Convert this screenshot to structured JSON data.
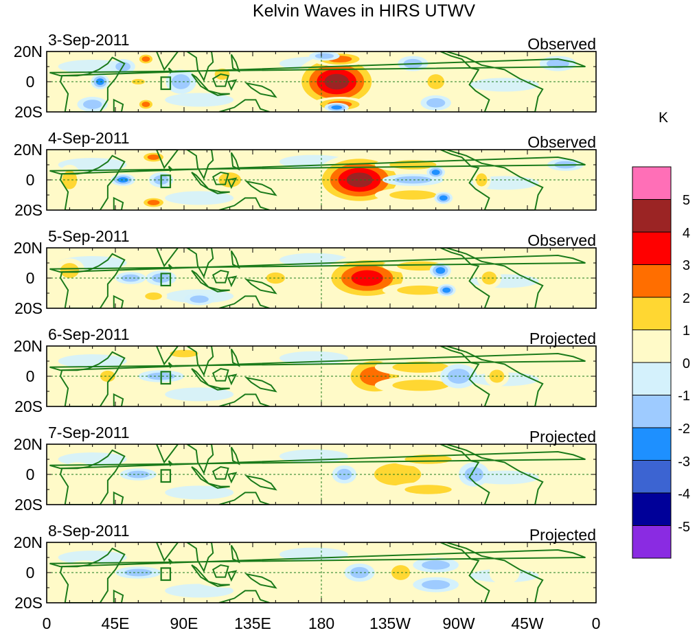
{
  "title": "Kelvin Waves in HIRS UTWV",
  "panels": [
    {
      "date": "3-Sep-2011",
      "status": "Observed",
      "anomalies": [
        {
          "lon": 190,
          "lat": 0,
          "value": 4.3,
          "rx": 28,
          "ry": 18
        },
        {
          "lon": 192,
          "lat": 15,
          "value": 2.2,
          "rx": 18,
          "ry": 5
        },
        {
          "lon": 192,
          "lat": -15,
          "value": 2.2,
          "rx": 18,
          "ry": 5
        },
        {
          "lon": 190,
          "lat": -17,
          "value": -2.2,
          "rx": 8,
          "ry": 3
        },
        {
          "lon": 182,
          "lat": 17,
          "value": -1.6,
          "rx": 10,
          "ry": 3
        },
        {
          "lon": 65,
          "lat": 15,
          "value": 2.2,
          "rx": 6,
          "ry": 4
        },
        {
          "lon": 65,
          "lat": -15,
          "value": 2.2,
          "rx": 6,
          "ry": 4
        },
        {
          "lon": 60,
          "lat": 0,
          "value": 2.0,
          "rx": 7,
          "ry": 3
        },
        {
          "lon": 115,
          "lat": 5,
          "value": 1.6,
          "rx": 8,
          "ry": 6
        },
        {
          "lon": 35,
          "lat": 0,
          "value": -2.2,
          "rx": 6,
          "ry": 5
        },
        {
          "lon": 50,
          "lat": 10,
          "value": -1.6,
          "rx": 8,
          "ry": 5
        },
        {
          "lon": 88,
          "lat": 0,
          "value": -1.6,
          "rx": 10,
          "ry": 8
        },
        {
          "lon": 255,
          "lat": 0,
          "value": 1.6,
          "rx": 9,
          "ry": 8
        },
        {
          "lon": 240,
          "lat": 12,
          "value": -1.6,
          "rx": 10,
          "ry": 5
        },
        {
          "lon": 255,
          "lat": -14,
          "value": -1.6,
          "rx": 10,
          "ry": 5
        },
        {
          "lon": 335,
          "lat": 12,
          "value": -1.5,
          "rx": 12,
          "ry": 5
        },
        {
          "lon": 30,
          "lat": -15,
          "value": -1.5,
          "rx": 10,
          "ry": 5
        }
      ]
    },
    {
      "date": "4-Sep-2011",
      "status": "Observed",
      "anomalies": [
        {
          "lon": 205,
          "lat": 0,
          "value": 4.2,
          "rx": 30,
          "ry": 17
        },
        {
          "lon": 240,
          "lat": 10,
          "value": 1.6,
          "rx": 25,
          "ry": 5
        },
        {
          "lon": 240,
          "lat": -10,
          "value": 1.6,
          "rx": 25,
          "ry": 5
        },
        {
          "lon": 240,
          "lat": 0,
          "value": -1.5,
          "rx": 20,
          "ry": 4
        },
        {
          "lon": 255,
          "lat": 5,
          "value": -2.2,
          "rx": 6,
          "ry": 4
        },
        {
          "lon": 260,
          "lat": -12,
          "value": -2.2,
          "rx": 6,
          "ry": 4
        },
        {
          "lon": 285,
          "lat": 0,
          "value": 1.6,
          "rx": 6,
          "ry": 7
        },
        {
          "lon": 70,
          "lat": 15,
          "value": 2.2,
          "rx": 9,
          "ry": 4
        },
        {
          "lon": 70,
          "lat": -15,
          "value": 2.2,
          "rx": 9,
          "ry": 4
        },
        {
          "lon": 50,
          "lat": 0,
          "value": -2.2,
          "rx": 8,
          "ry": 4
        },
        {
          "lon": 75,
          "lat": 0,
          "value": -1.6,
          "rx": 8,
          "ry": 5
        },
        {
          "lon": 120,
          "lat": 0,
          "value": 1.5,
          "rx": 12,
          "ry": 8
        },
        {
          "lon": 15,
          "lat": 0,
          "value": 1.2,
          "rx": 8,
          "ry": 10
        },
        {
          "lon": 340,
          "lat": 10,
          "value": -1.5,
          "rx": 12,
          "ry": 4
        }
      ]
    },
    {
      "date": "5-Sep-2011",
      "status": "Observed",
      "anomalies": [
        {
          "lon": 210,
          "lat": 0,
          "value": 3.3,
          "rx": 30,
          "ry": 15
        },
        {
          "lon": 245,
          "lat": 8,
          "value": 1.5,
          "rx": 25,
          "ry": 5
        },
        {
          "lon": 245,
          "lat": -8,
          "value": 1.5,
          "rx": 25,
          "ry": 5
        },
        {
          "lon": 258,
          "lat": 5,
          "value": -2.2,
          "rx": 7,
          "ry": 5
        },
        {
          "lon": 262,
          "lat": -8,
          "value": -2.2,
          "rx": 6,
          "ry": 4
        },
        {
          "lon": 290,
          "lat": 0,
          "value": 1.6,
          "rx": 8,
          "ry": 7
        },
        {
          "lon": 55,
          "lat": 0,
          "value": -2.0,
          "rx": 10,
          "ry": 4
        },
        {
          "lon": 75,
          "lat": 0,
          "value": -1.6,
          "rx": 10,
          "ry": 5
        },
        {
          "lon": 70,
          "lat": -12,
          "value": 1.5,
          "rx": 9,
          "ry": 4
        },
        {
          "lon": 150,
          "lat": 0,
          "value": 1.5,
          "rx": 10,
          "ry": 6
        },
        {
          "lon": 100,
          "lat": -14,
          "value": -1.5,
          "rx": 10,
          "ry": 4
        },
        {
          "lon": 15,
          "lat": 5,
          "value": 1.3,
          "rx": 10,
          "ry": 8
        }
      ]
    },
    {
      "date": "6-Sep-2011",
      "status": "Projected",
      "anomalies": [
        {
          "lon": 215,
          "lat": 0,
          "value": 2.2,
          "rx": 22,
          "ry": 14
        },
        {
          "lon": 245,
          "lat": 6,
          "value": 1.5,
          "rx": 30,
          "ry": 6
        },
        {
          "lon": 245,
          "lat": -6,
          "value": 1.5,
          "rx": 30,
          "ry": 6
        },
        {
          "lon": 270,
          "lat": 0,
          "value": -1.5,
          "rx": 12,
          "ry": 8
        },
        {
          "lon": 295,
          "lat": 0,
          "value": 1.2,
          "rx": 8,
          "ry": 7
        },
        {
          "lon": 40,
          "lat": 0,
          "value": 1.5,
          "rx": 8,
          "ry": 6
        },
        {
          "lon": 75,
          "lat": 0,
          "value": -1.5,
          "rx": 15,
          "ry": 4
        },
        {
          "lon": 90,
          "lat": 15,
          "value": 1.2,
          "rx": 15,
          "ry": 4
        },
        {
          "lon": 130,
          "lat": 0,
          "value": 1.0,
          "rx": 20,
          "ry": 8
        }
      ]
    },
    {
      "date": "7-Sep-2011",
      "status": "Projected",
      "anomalies": [
        {
          "lon": 230,
          "lat": 0,
          "value": 1.5,
          "rx": 25,
          "ry": 12
        },
        {
          "lon": 250,
          "lat": 10,
          "value": 1.2,
          "rx": 25,
          "ry": 5
        },
        {
          "lon": 250,
          "lat": -10,
          "value": 1.2,
          "rx": 25,
          "ry": 5
        },
        {
          "lon": 280,
          "lat": 0,
          "value": -1.5,
          "rx": 10,
          "ry": 8
        },
        {
          "lon": 195,
          "lat": 0,
          "value": -1.2,
          "rx": 8,
          "ry": 6
        },
        {
          "lon": 140,
          "lat": 0,
          "value": 1.0,
          "rx": 25,
          "ry": 10
        },
        {
          "lon": 60,
          "lat": 0,
          "value": -1.2,
          "rx": 12,
          "ry": 4
        },
        {
          "lon": 20,
          "lat": 0,
          "value": 1.0,
          "rx": 12,
          "ry": 8
        }
      ]
    },
    {
      "date": "8-Sep-2011",
      "status": "Projected",
      "anomalies": [
        {
          "lon": 232,
          "lat": 0,
          "value": 1.3,
          "rx": 10,
          "ry": 8
        },
        {
          "lon": 255,
          "lat": 5,
          "value": -1.2,
          "rx": 15,
          "ry": 5
        },
        {
          "lon": 255,
          "lat": -8,
          "value": -1.2,
          "rx": 15,
          "ry": 5
        },
        {
          "lon": 205,
          "lat": 0,
          "value": -1.1,
          "rx": 10,
          "ry": 6
        },
        {
          "lon": 120,
          "lat": 0,
          "value": 1.0,
          "rx": 30,
          "ry": 10
        },
        {
          "lon": 60,
          "lat": 0,
          "value": -1.1,
          "rx": 15,
          "ry": 4
        },
        {
          "lon": 25,
          "lat": 0,
          "value": 1.0,
          "rx": 15,
          "ry": 8
        },
        {
          "lon": 300,
          "lat": 0,
          "value": 1.0,
          "rx": 10,
          "ry": 8
        }
      ]
    }
  ],
  "lat_labels": [
    "20N",
    "0",
    "20S"
  ],
  "lon_labels": [
    "0",
    "45E",
    "90E",
    "135E",
    "180",
    "135W",
    "90W",
    "45W",
    "0"
  ],
  "lon_ticks": [
    0,
    45,
    90,
    135,
    180,
    225,
    270,
    315,
    360
  ],
  "lat_range": [
    -20,
    20
  ],
  "lon_range": [
    0,
    360
  ],
  "colorbar": {
    "unit": "K",
    "levels": [
      -5,
      -4,
      -3,
      -2,
      -1,
      0,
      1,
      2,
      3,
      4,
      5
    ],
    "labels": [
      "5",
      "4",
      "3",
      "2",
      "1",
      "0",
      "-1",
      "-2",
      "-3",
      "-4",
      "-5"
    ],
    "colors": [
      "#8a2be2",
      "#000099",
      "#3c64d2",
      "#1e90ff",
      "#9ecbff",
      "#d4f1fc",
      "#fffac8",
      "#ffd732",
      "#ff6e00",
      "#ff0000",
      "#9b2424",
      "#ff6fb7"
    ]
  },
  "land_color": "#1a7a1a",
  "marker_box": {
    "lon_range": [
      75,
      81
    ],
    "lat_range": [
      -5,
      3
    ]
  }
}
